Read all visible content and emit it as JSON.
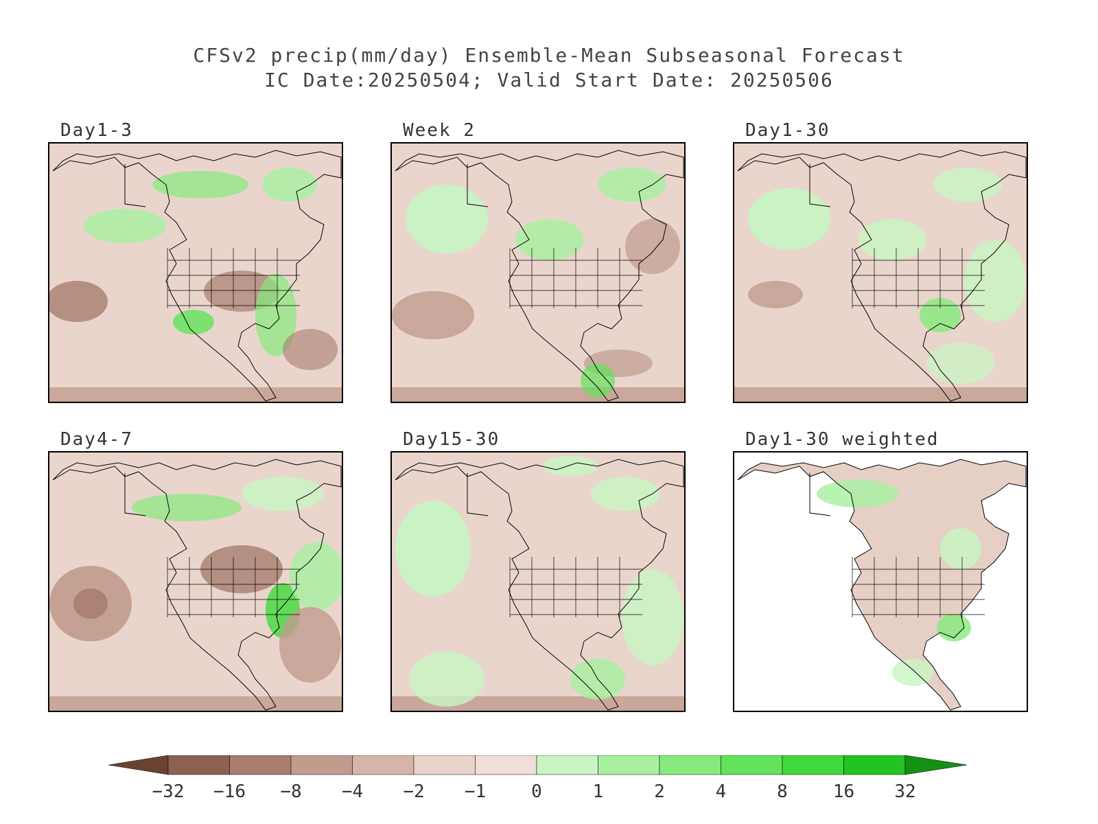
{
  "title": {
    "line1": "CFSv2 precip(mm/day) Ensemble-Mean Subseasonal Forecast",
    "line2": "IC Date:20250504; Valid Start Date: 20250506"
  },
  "panels": [
    {
      "label": "Day1-3",
      "weighted": false
    },
    {
      "label": "Week 2",
      "weighted": false
    },
    {
      "label": "Day1-30",
      "weighted": false
    },
    {
      "label": "Day4-7",
      "weighted": false
    },
    {
      "label": "Day15-30",
      "weighted": false
    },
    {
      "label": "Day1-30 weighted",
      "weighted": true
    }
  ],
  "colorbar": {
    "labels": [
      "-32",
      "-16",
      "-8",
      "-4",
      "-2",
      "-1",
      "0",
      "1",
      "2",
      "4",
      "8",
      "16",
      "32"
    ],
    "colors": [
      "#6b4232",
      "#8c6052",
      "#a77d6f",
      "#c19b8e",
      "#d6b4a9",
      "#e9d3ca",
      "#f0dfd8",
      "#c8f5c3",
      "#a8f0a0",
      "#86ea7c",
      "#62e35a",
      "#40d93b",
      "#22c422",
      "#159015"
    ]
  }
}
